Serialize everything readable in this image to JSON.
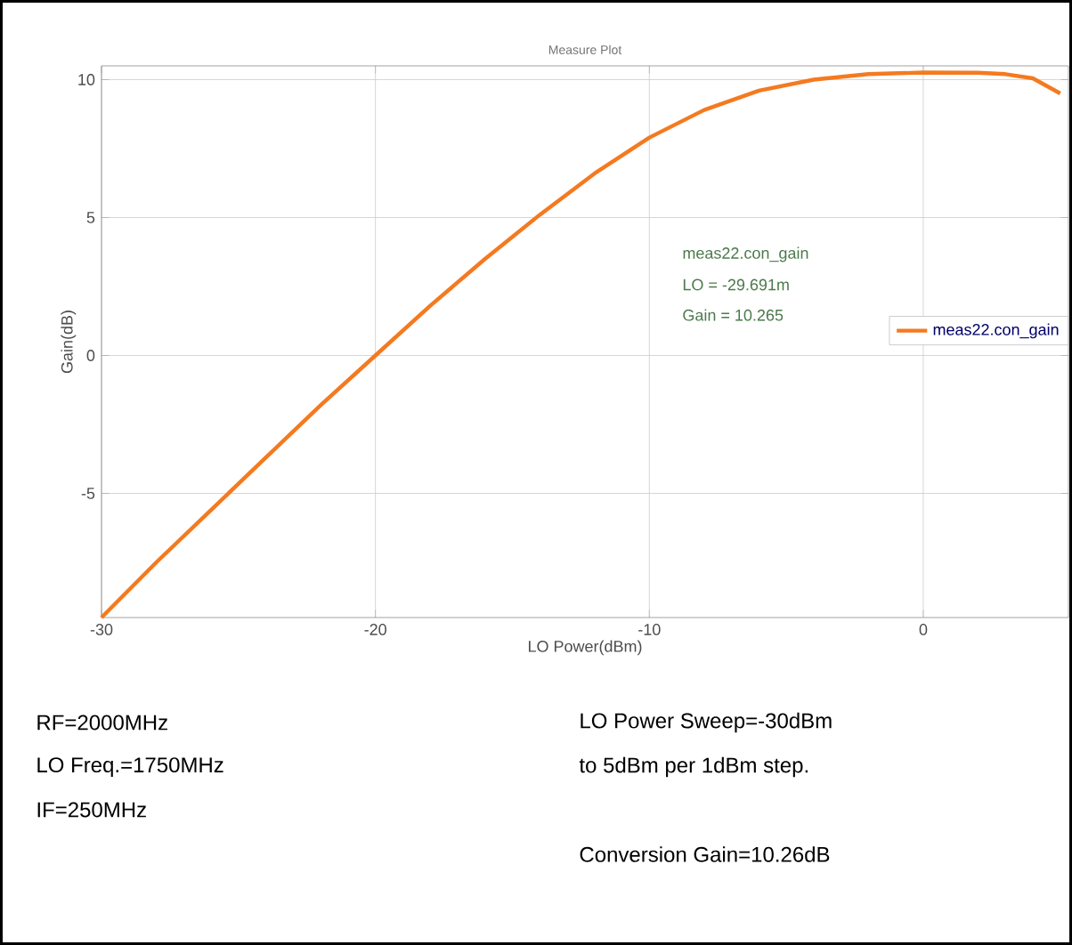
{
  "chart_data": {
    "type": "line",
    "title": "Measure Plot",
    "xlabel": "LO Power(dBm)",
    "ylabel": "Gain(dB)",
    "x": [
      -30,
      -28,
      -26,
      -24,
      -22,
      -20,
      -18,
      -16,
      -14,
      -12,
      -10,
      -8,
      -6,
      -4,
      -2,
      0,
      2,
      3,
      4,
      5
    ],
    "series": [
      {
        "name": "meas22.con_gain",
        "color": "#f47a20",
        "values": [
          -9.5,
          -7.5,
          -5.6,
          -3.7,
          -1.8,
          0,
          1.8,
          3.5,
          5.1,
          6.6,
          7.9,
          8.9,
          9.6,
          10.0,
          10.2,
          10.26,
          10.25,
          10.2,
          10.05,
          9.5
        ]
      }
    ],
    "xlim": [
      -30,
      5.3
    ],
    "ylim": [
      -9.5,
      10.5
    ],
    "xticks": [
      -30,
      -20,
      -10,
      0
    ],
    "yticks": [
      -5,
      0,
      5,
      10
    ],
    "grid": true,
    "legend": "right",
    "marker": "none",
    "line_style": "solid",
    "annotations": [
      "meas22.con_gain",
      "LO = -29.691m",
      "Gain = 10.265",
      "RF=2000MHz",
      "LO Freq.=1750MHz",
      "IF=250MHz",
      "LO Power Sweep=-30dBm",
      "to 5dBm per 1dBm step.",
      "Conversion Gain=10.26dB"
    ]
  }
}
